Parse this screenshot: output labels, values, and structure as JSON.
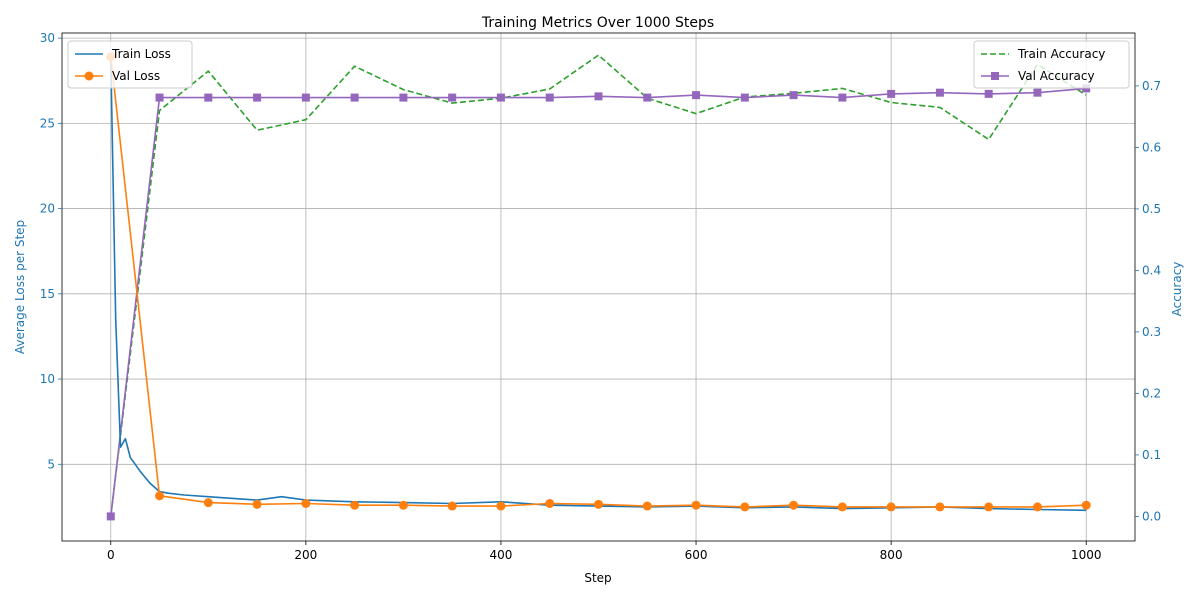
{
  "chart_data": {
    "type": "line",
    "title": "Training Metrics Over 1000 Steps",
    "xlabel": "Step",
    "ylabel_left": "Average Loss per Step",
    "ylabel_right": "Accuracy",
    "xlim": [
      -50,
      1050
    ],
    "ylim_left": [
      0.5,
      30.3
    ],
    "ylim_right": [
      -0.04,
      0.786
    ],
    "x_ticks": [
      0,
      200,
      400,
      600,
      800,
      1000
    ],
    "y_ticks_left": [
      5,
      10,
      15,
      20,
      25,
      30
    ],
    "y_ticks_right": [
      0.0,
      0.1,
      0.2,
      0.3,
      0.4,
      0.5,
      0.6,
      0.7
    ],
    "grid": true,
    "legend_left": "upper left",
    "legend_right": "upper right",
    "series": [
      {
        "name": "Train Loss",
        "axis": "left",
        "color": "#1f77b4",
        "style": "solid",
        "marker": "none",
        "x": [
          0,
          5,
          10,
          15,
          20,
          25,
          30,
          40,
          50,
          60,
          75,
          100,
          125,
          150,
          175,
          200,
          250,
          300,
          350,
          400,
          450,
          500,
          550,
          600,
          650,
          700,
          750,
          800,
          850,
          900,
          950,
          1000
        ],
        "y": [
          28.8,
          13.5,
          6.0,
          6.5,
          5.4,
          5.0,
          4.6,
          3.9,
          3.4,
          3.3,
          3.2,
          3.1,
          3.0,
          2.9,
          3.1,
          2.9,
          2.8,
          2.75,
          2.7,
          2.8,
          2.6,
          2.55,
          2.5,
          2.55,
          2.45,
          2.5,
          2.4,
          2.45,
          2.5,
          2.4,
          2.35,
          2.3
        ]
      },
      {
        "name": "Val Loss",
        "axis": "left",
        "color": "#ff7f0e",
        "style": "solid",
        "marker": "circle",
        "x": [
          0,
          50,
          100,
          150,
          200,
          250,
          300,
          350,
          400,
          450,
          500,
          550,
          600,
          650,
          700,
          750,
          800,
          850,
          900,
          950,
          1000
        ],
        "y": [
          28.9,
          3.15,
          2.75,
          2.65,
          2.7,
          2.6,
          2.6,
          2.55,
          2.55,
          2.7,
          2.65,
          2.55,
          2.6,
          2.5,
          2.6,
          2.5,
          2.5,
          2.5,
          2.5,
          2.5,
          2.6
        ]
      },
      {
        "name": "Train Accuracy",
        "axis": "right",
        "color": "#2ca02c",
        "style": "dashed",
        "marker": "none",
        "x": [
          0,
          50,
          100,
          150,
          200,
          250,
          300,
          350,
          400,
          450,
          500,
          550,
          600,
          650,
          700,
          750,
          800,
          850,
          900,
          950,
          1000
        ],
        "y": [
          0.0,
          0.66,
          0.724,
          0.628,
          0.645,
          0.732,
          0.694,
          0.672,
          0.68,
          0.695,
          0.75,
          0.68,
          0.655,
          0.682,
          0.688,
          0.696,
          0.673,
          0.665,
          0.613,
          0.735,
          0.685
        ]
      },
      {
        "name": "Val Accuracy",
        "axis": "right",
        "color": "#9467bd",
        "style": "solid",
        "marker": "square",
        "x": [
          0,
          50,
          100,
          150,
          200,
          250,
          300,
          350,
          400,
          450,
          500,
          550,
          600,
          650,
          700,
          750,
          800,
          850,
          900,
          950,
          1000
        ],
        "y": [
          0.0,
          0.681,
          0.681,
          0.681,
          0.681,
          0.681,
          0.681,
          0.681,
          0.681,
          0.681,
          0.683,
          0.681,
          0.685,
          0.681,
          0.685,
          0.681,
          0.687,
          0.689,
          0.687,
          0.689,
          0.696
        ]
      }
    ]
  }
}
